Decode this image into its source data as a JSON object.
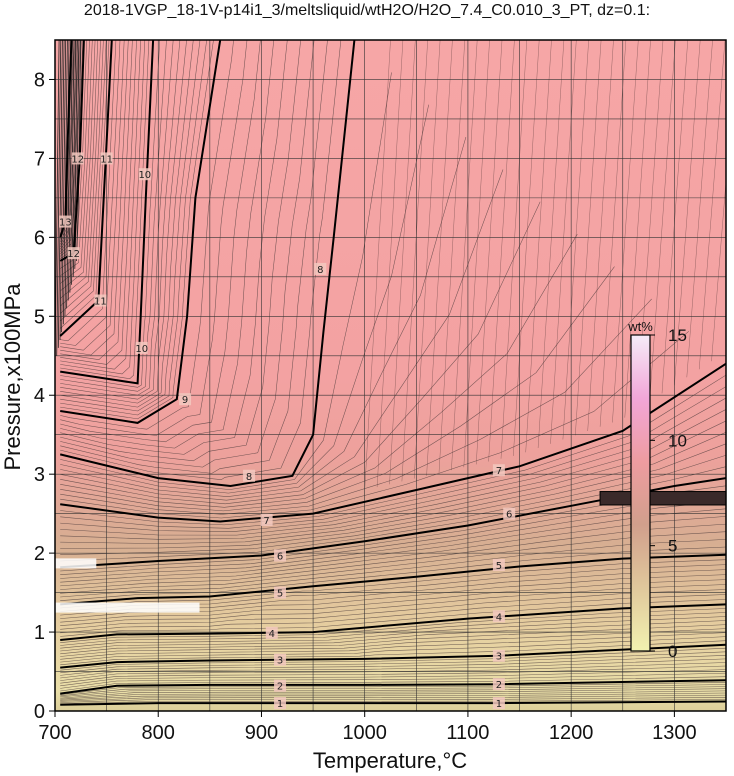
{
  "chart_data": {
    "type": "heatmap",
    "title": "2018-1VGP_18-1V-p14i1_3/meltsliquid/wtH2O/H2O_7.4_C0.010_3_PT, dz=0.1:",
    "xlabel": "Temperature,°C",
    "ylabel": "Pressure,x100MPa",
    "xlim": [
      700,
      1350
    ],
    "ylim": [
      0,
      8.5
    ],
    "x_ticks": [
      700,
      800,
      900,
      1000,
      1100,
      1200,
      1300
    ],
    "y_ticks": [
      0,
      1,
      2,
      3,
      4,
      5,
      6,
      7,
      8
    ],
    "grid": true,
    "colorbar": {
      "title": "wt%",
      "ticks": [
        0,
        5,
        10,
        15
      ],
      "range": [
        0,
        15
      ],
      "placement": "right-inside",
      "colors": [
        "#f2f2b0",
        "#e0c89c",
        "#d19f8c",
        "#ee9ca0",
        "#f2a6d8",
        "#f5ecf8"
      ]
    },
    "contour_interval": 0.1,
    "labeled_contours": [
      {
        "level": 1,
        "points": [
          [
            705,
            0.08
          ],
          [
            800,
            0.1
          ],
          [
            900,
            0.1
          ],
          [
            1000,
            0.1
          ],
          [
            1130,
            0.1
          ],
          [
            1350,
            0.12
          ]
        ],
        "labels": [
          [
            918,
            0.1
          ],
          [
            1130,
            0.1
          ]
        ]
      },
      {
        "level": 2,
        "points": [
          [
            705,
            0.22
          ],
          [
            760,
            0.32
          ],
          [
            850,
            0.33
          ],
          [
            1000,
            0.33
          ],
          [
            1130,
            0.34
          ],
          [
            1350,
            0.39
          ]
        ],
        "labels": [
          [
            918,
            0.32
          ],
          [
            1130,
            0.34
          ]
        ]
      },
      {
        "level": 3,
        "points": [
          [
            705,
            0.55
          ],
          [
            760,
            0.62
          ],
          [
            850,
            0.64
          ],
          [
            1000,
            0.66
          ],
          [
            1130,
            0.7
          ],
          [
            1350,
            0.84
          ]
        ],
        "labels": [
          [
            918,
            0.65
          ],
          [
            1130,
            0.7
          ]
        ]
      },
      {
        "level": 4,
        "points": [
          [
            705,
            0.9
          ],
          [
            760,
            0.97
          ],
          [
            850,
            0.98
          ],
          [
            950,
            1.0
          ],
          [
            1100,
            1.17
          ],
          [
            1250,
            1.3
          ],
          [
            1350,
            1.35
          ]
        ],
        "labels": [
          [
            910,
            0.99
          ],
          [
            1130,
            1.2
          ]
        ]
      },
      {
        "level": 5,
        "points": [
          [
            705,
            1.35
          ],
          [
            780,
            1.43
          ],
          [
            850,
            1.45
          ],
          [
            950,
            1.58
          ],
          [
            1050,
            1.7
          ],
          [
            1150,
            1.83
          ],
          [
            1250,
            1.93
          ],
          [
            1350,
            1.98
          ]
        ],
        "labels": [
          [
            918,
            1.5
          ],
          [
            1130,
            1.85
          ]
        ]
      },
      {
        "level": 6,
        "points": [
          [
            705,
            1.82
          ],
          [
            800,
            1.9
          ],
          [
            900,
            1.97
          ],
          [
            1000,
            2.15
          ],
          [
            1100,
            2.35
          ],
          [
            1200,
            2.6
          ],
          [
            1300,
            2.85
          ],
          [
            1350,
            2.95
          ]
        ],
        "labels": [
          [
            918,
            1.97
          ],
          [
            1140,
            2.5
          ]
        ]
      },
      {
        "level": 7,
        "points": [
          [
            705,
            2.62
          ],
          [
            800,
            2.45
          ],
          [
            860,
            2.4
          ],
          [
            950,
            2.5
          ],
          [
            1050,
            2.8
          ],
          [
            1150,
            3.1
          ],
          [
            1250,
            3.55
          ],
          [
            1350,
            4.4
          ]
        ],
        "labels": [
          [
            905,
            2.42
          ],
          [
            1130,
            3.05
          ]
        ]
      },
      {
        "level": 8,
        "points": [
          [
            705,
            3.25
          ],
          [
            800,
            2.95
          ],
          [
            870,
            2.85
          ],
          [
            930,
            2.98
          ],
          [
            950,
            3.5
          ],
          [
            960,
            4.8
          ],
          [
            970,
            6.0
          ],
          [
            990,
            8.5
          ]
        ],
        "labels": [
          [
            888,
            2.98
          ],
          [
            957,
            5.6
          ]
        ]
      },
      {
        "level": 9,
        "points": [
          [
            705,
            3.8
          ],
          [
            780,
            3.65
          ],
          [
            818,
            3.95
          ],
          [
            828,
            5.0
          ],
          [
            836,
            6.5
          ],
          [
            860,
            8.5
          ]
        ],
        "labels": [
          [
            826,
            3.95
          ]
        ]
      },
      {
        "level": 10,
        "points": [
          [
            705,
            4.3
          ],
          [
            780,
            4.15
          ],
          [
            783,
            5.0
          ],
          [
            788,
            6.5
          ],
          [
            795,
            8.5
          ]
        ],
        "labels": [
          [
            784,
            4.6
          ],
          [
            787,
            6.8
          ]
        ]
      },
      {
        "level": 11,
        "points": [
          [
            705,
            4.75
          ],
          [
            742,
            5.2
          ],
          [
            750,
            7.2
          ],
          [
            755,
            8.5
          ]
        ],
        "labels": [
          [
            744,
            5.2
          ],
          [
            750,
            7.0
          ]
        ]
      },
      {
        "level": 12,
        "points": [
          [
            705,
            5.7
          ],
          [
            718,
            5.8
          ],
          [
            724,
            7.0
          ],
          [
            728,
            8.5
          ]
        ],
        "labels": [
          [
            718,
            5.8
          ],
          [
            722,
            7.0
          ]
        ]
      },
      {
        "level": 13,
        "points": [
          [
            705,
            6.0
          ],
          [
            710,
            6.2
          ],
          [
            713,
            7.5
          ],
          [
            716,
            8.5
          ]
        ],
        "labels": [
          [
            710,
            6.2
          ]
        ]
      }
    ],
    "annotation_bars": [
      {
        "x": [
          700,
          740
        ],
        "y": 1.87
      },
      {
        "x": [
          700,
          840
        ],
        "y": 1.31
      }
    ],
    "dark_bar": {
      "x": [
        1228,
        1350
      ],
      "y": [
        2.61,
        2.78
      ]
    }
  }
}
